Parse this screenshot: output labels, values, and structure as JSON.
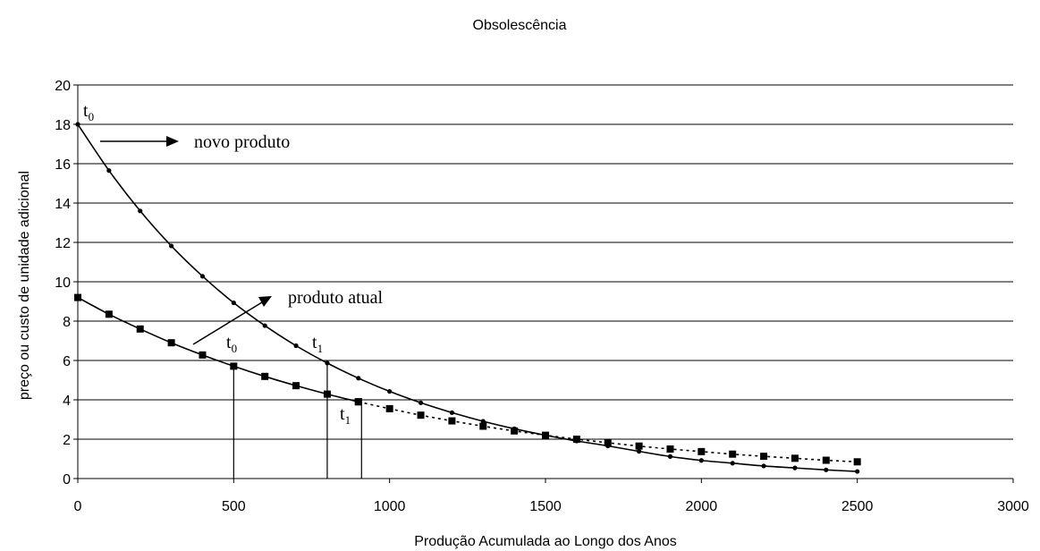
{
  "chart_data": {
    "type": "line",
    "title": "Obsolescência",
    "xlabel": "Produção Acumulada ao Longo dos Anos",
    "ylabel": "preço ou custo  de unidade adicional",
    "xlim": [
      0,
      3000
    ],
    "ylim": [
      0,
      20
    ],
    "x_ticks": [
      0,
      500,
      1000,
      1500,
      2000,
      2500,
      3000
    ],
    "y_ticks": [
      0,
      2,
      4,
      6,
      8,
      10,
      12,
      14,
      16,
      18,
      20
    ],
    "grid": "horizontal",
    "series": [
      {
        "style": "solid-circle",
        "color": "#000000",
        "points": [
          [
            0,
            18.0
          ],
          [
            100,
            15.65
          ],
          [
            200,
            13.6
          ],
          [
            300,
            11.82
          ],
          [
            400,
            10.28
          ],
          [
            500,
            8.93
          ],
          [
            600,
            7.77
          ],
          [
            700,
            6.75
          ],
          [
            800,
            5.87
          ],
          [
            900,
            5.1
          ],
          [
            1000,
            4.43
          ],
          [
            1100,
            3.85
          ],
          [
            1200,
            3.35
          ],
          [
            1300,
            2.91
          ],
          [
            1400,
            2.53
          ],
          [
            1500,
            2.2
          ],
          [
            1600,
            1.91
          ],
          [
            1700,
            1.66
          ],
          [
            1800,
            1.38
          ],
          [
            1900,
            1.12
          ],
          [
            2000,
            0.92
          ],
          [
            2100,
            0.78
          ],
          [
            2200,
            0.64
          ],
          [
            2300,
            0.54
          ],
          [
            2400,
            0.44
          ],
          [
            2500,
            0.36
          ]
        ]
      },
      {
        "style": "solid-square",
        "color": "#000000",
        "points": [
          [
            0,
            9.2
          ],
          [
            100,
            8.35
          ],
          [
            200,
            7.6
          ],
          [
            300,
            6.9
          ],
          [
            400,
            6.28
          ],
          [
            500,
            5.71
          ],
          [
            600,
            5.19
          ],
          [
            700,
            4.72
          ],
          [
            800,
            4.29
          ],
          [
            900,
            3.9
          ]
        ]
      },
      {
        "style": "dotted-square",
        "color": "#000000",
        "points": [
          [
            900,
            3.9
          ],
          [
            1000,
            3.55
          ],
          [
            1100,
            3.22
          ],
          [
            1200,
            2.93
          ],
          [
            1300,
            2.66
          ],
          [
            1400,
            2.42
          ],
          [
            1500,
            2.2
          ],
          [
            1600,
            2.0
          ],
          [
            1700,
            1.82
          ],
          [
            1800,
            1.65
          ],
          [
            1900,
            1.5
          ],
          [
            2000,
            1.37
          ],
          [
            2100,
            1.24
          ],
          [
            2200,
            1.13
          ],
          [
            2300,
            1.03
          ],
          [
            2400,
            0.93
          ],
          [
            2500,
            0.85
          ]
        ]
      }
    ],
    "drop_lines": [
      {
        "x": 500,
        "y": 5.71
      },
      {
        "x": 800,
        "y": 5.87
      },
      {
        "x": 910,
        "y": 3.87
      }
    ],
    "annotations": {
      "novo_produto": "novo produto",
      "produto_atual": "produto atual",
      "t0_base": "t",
      "t0_sub": "0",
      "t1_base": "t",
      "t1_sub": "1"
    }
  }
}
